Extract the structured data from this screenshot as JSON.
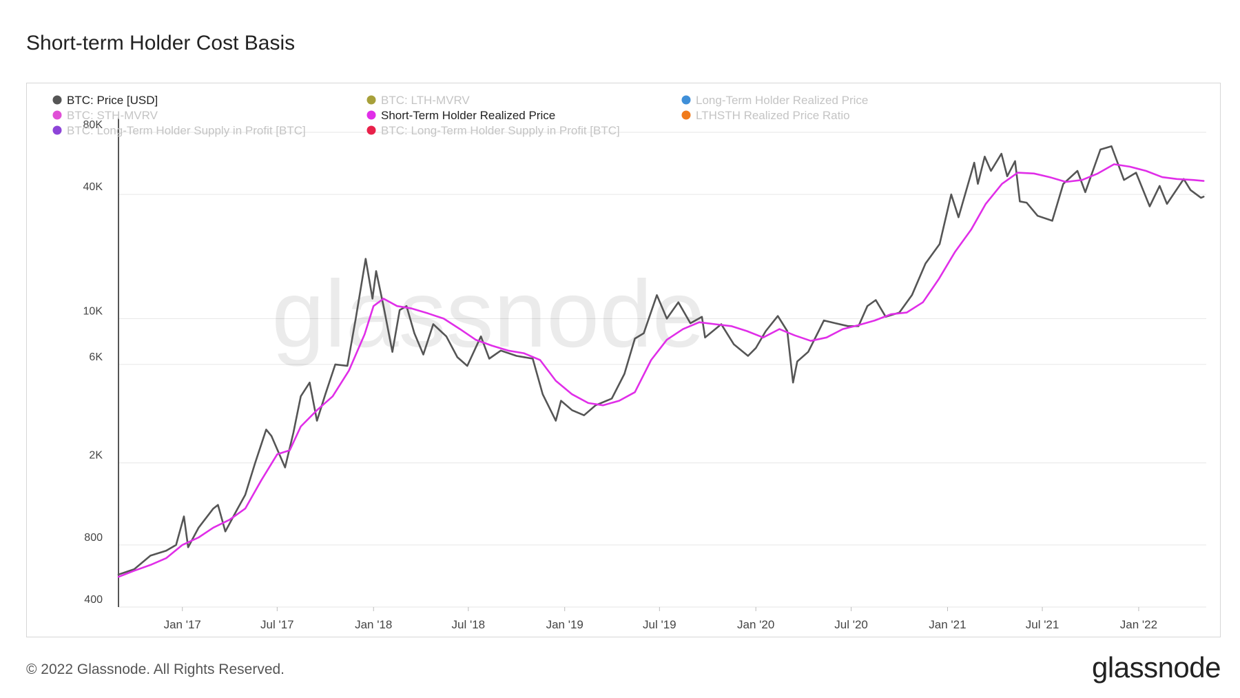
{
  "title": "Short-term Holder Cost Basis",
  "footer": "© 2022 Glassnode. All Rights Reserved.",
  "brand": "glassnode",
  "watermark": "glassnode",
  "legend": [
    {
      "label": "BTC: Price [USD]",
      "color": "#555555",
      "active": true
    },
    {
      "label": "BTC: LTH-MVRV",
      "color": "#a7a03a",
      "active": false
    },
    {
      "label": "Long-Term Holder Realized Price",
      "color": "#3f8fd8",
      "active": false
    },
    {
      "label": "BTC: STH-MVRV",
      "color": "#e04fd6",
      "active": false
    },
    {
      "label": "Short-Term Holder Realized Price",
      "color": "#e02ee8",
      "active": true
    },
    {
      "label": "LTHSTH Realized Price Ratio",
      "color": "#f07a1a",
      "active": false
    },
    {
      "label": "BTC: Long-Term Holder Supply in Profit [BTC]",
      "color": "#8d44d8",
      "active": false
    },
    {
      "label": "BTC: Long-Term Holder Supply in Profit [BTC]",
      "color": "#e8214a",
      "active": false
    }
  ],
  "chart_data": {
    "type": "line",
    "y_scale": "log",
    "ylim": [
      400,
      100000
    ],
    "y_ticks": [
      {
        "label": "400",
        "value": 400
      },
      {
        "label": "800",
        "value": 800
      },
      {
        "label": "2K",
        "value": 2000
      },
      {
        "label": "6K",
        "value": 6000
      },
      {
        "label": "10K",
        "value": 10000
      },
      {
        "label": "40K",
        "value": 40000
      },
      {
        "label": "80K",
        "value": 80000
      }
    ],
    "x_range": [
      "2016-09-01",
      "2022-05-10"
    ],
    "x_ticks": [
      {
        "label": "Jan '17",
        "date": "2017-01-01"
      },
      {
        "label": "Jul '17",
        "date": "2017-07-01"
      },
      {
        "label": "Jan '18",
        "date": "2018-01-01"
      },
      {
        "label": "Jul '18",
        "date": "2018-07-01"
      },
      {
        "label": "Jan '19",
        "date": "2019-01-01"
      },
      {
        "label": "Jul '19",
        "date": "2019-07-01"
      },
      {
        "label": "Jan '20",
        "date": "2020-01-01"
      },
      {
        "label": "Jul '20",
        "date": "2020-07-01"
      },
      {
        "label": "Jan '21",
        "date": "2021-01-01"
      },
      {
        "label": "Jul '21",
        "date": "2021-07-01"
      },
      {
        "label": "Jan '22",
        "date": "2022-01-01"
      }
    ],
    "grid": true,
    "legend_position": "top-left",
    "series": [
      {
        "name": "BTC: Price [USD]",
        "color": "#555555",
        "points": [
          [
            "2016-09-01",
            575
          ],
          [
            "2016-10-01",
            610
          ],
          [
            "2016-11-01",
            710
          ],
          [
            "2016-12-01",
            750
          ],
          [
            "2016-12-20",
            800
          ],
          [
            "2017-01-04",
            1100
          ],
          [
            "2017-01-12",
            780
          ],
          [
            "2017-02-01",
            970
          ],
          [
            "2017-03-01",
            1200
          ],
          [
            "2017-03-10",
            1250
          ],
          [
            "2017-03-24",
            930
          ],
          [
            "2017-04-15",
            1180
          ],
          [
            "2017-05-01",
            1400
          ],
          [
            "2017-05-20",
            2000
          ],
          [
            "2017-06-10",
            2900
          ],
          [
            "2017-06-20",
            2700
          ],
          [
            "2017-07-16",
            1900
          ],
          [
            "2017-08-01",
            2800
          ],
          [
            "2017-08-15",
            4200
          ],
          [
            "2017-09-01",
            4900
          ],
          [
            "2017-09-15",
            3200
          ],
          [
            "2017-10-01",
            4300
          ],
          [
            "2017-10-20",
            6000
          ],
          [
            "2017-11-12",
            5900
          ],
          [
            "2017-11-28",
            10000
          ],
          [
            "2017-12-17",
            19500
          ],
          [
            "2017-12-30",
            12500
          ],
          [
            "2018-01-06",
            17000
          ],
          [
            "2018-01-20",
            11500
          ],
          [
            "2018-02-06",
            6900
          ],
          [
            "2018-02-20",
            11000
          ],
          [
            "2018-03-05",
            11500
          ],
          [
            "2018-03-20",
            8500
          ],
          [
            "2018-04-06",
            6700
          ],
          [
            "2018-04-25",
            9400
          ],
          [
            "2018-05-20",
            8200
          ],
          [
            "2018-06-10",
            6500
          ],
          [
            "2018-06-29",
            5900
          ],
          [
            "2018-07-25",
            8200
          ],
          [
            "2018-08-10",
            6400
          ],
          [
            "2018-09-01",
            7000
          ],
          [
            "2018-10-01",
            6600
          ],
          [
            "2018-11-01",
            6400
          ],
          [
            "2018-11-20",
            4300
          ],
          [
            "2018-12-15",
            3200
          ],
          [
            "2018-12-25",
            4000
          ],
          [
            "2019-01-15",
            3600
          ],
          [
            "2019-02-07",
            3400
          ],
          [
            "2019-03-01",
            3800
          ],
          [
            "2019-04-01",
            4100
          ],
          [
            "2019-04-25",
            5400
          ],
          [
            "2019-05-15",
            8000
          ],
          [
            "2019-06-01",
            8500
          ],
          [
            "2019-06-26",
            13000
          ],
          [
            "2019-07-15",
            10000
          ],
          [
            "2019-08-06",
            12000
          ],
          [
            "2019-08-29",
            9500
          ],
          [
            "2019-09-20",
            10200
          ],
          [
            "2019-09-26",
            8100
          ],
          [
            "2019-10-27",
            9400
          ],
          [
            "2019-11-20",
            7500
          ],
          [
            "2019-12-17",
            6600
          ],
          [
            "2020-01-01",
            7200
          ],
          [
            "2020-01-20",
            8700
          ],
          [
            "2020-02-12",
            10300
          ],
          [
            "2020-03-01",
            8700
          ],
          [
            "2020-03-12",
            4900
          ],
          [
            "2020-03-20",
            6200
          ],
          [
            "2020-04-10",
            6900
          ],
          [
            "2020-04-30",
            8700
          ],
          [
            "2020-05-10",
            9800
          ],
          [
            "2020-06-01",
            9500
          ],
          [
            "2020-06-25",
            9200
          ],
          [
            "2020-07-15",
            9200
          ],
          [
            "2020-08-01",
            11500
          ],
          [
            "2020-08-17",
            12300
          ],
          [
            "2020-09-05",
            10200
          ],
          [
            "2020-10-01",
            10700
          ],
          [
            "2020-10-25",
            13000
          ],
          [
            "2020-11-20",
            18500
          ],
          [
            "2020-12-17",
            23000
          ],
          [
            "2021-01-08",
            40000
          ],
          [
            "2021-01-22",
            31000
          ],
          [
            "2021-02-21",
            57000
          ],
          [
            "2021-02-28",
            45000
          ],
          [
            "2021-03-13",
            61000
          ],
          [
            "2021-03-25",
            52000
          ],
          [
            "2021-04-14",
            63000
          ],
          [
            "2021-04-25",
            49000
          ],
          [
            "2021-05-10",
            58000
          ],
          [
            "2021-05-19",
            37000
          ],
          [
            "2021-06-01",
            36500
          ],
          [
            "2021-06-22",
            31500
          ],
          [
            "2021-07-20",
            29800
          ],
          [
            "2021-08-10",
            45000
          ],
          [
            "2021-09-06",
            52000
          ],
          [
            "2021-09-21",
            41000
          ],
          [
            "2021-10-20",
            66000
          ],
          [
            "2021-11-10",
            68500
          ],
          [
            "2021-12-04",
            47000
          ],
          [
            "2021-12-27",
            51000
          ],
          [
            "2022-01-22",
            35000
          ],
          [
            "2022-02-10",
            44000
          ],
          [
            "2022-02-24",
            36000
          ],
          [
            "2022-03-28",
            47500
          ],
          [
            "2022-04-10",
            42000
          ],
          [
            "2022-04-30",
            38500
          ],
          [
            "2022-05-05",
            39000
          ]
        ]
      },
      {
        "name": "Short-Term Holder Realized Price",
        "color": "#e02ee8",
        "points": [
          [
            "2016-09-01",
            560
          ],
          [
            "2016-10-01",
            600
          ],
          [
            "2016-11-01",
            640
          ],
          [
            "2016-12-01",
            690
          ],
          [
            "2017-01-01",
            800
          ],
          [
            "2017-02-01",
            870
          ],
          [
            "2017-03-01",
            970
          ],
          [
            "2017-04-01",
            1060
          ],
          [
            "2017-05-01",
            1200
          ],
          [
            "2017-06-01",
            1650
          ],
          [
            "2017-07-01",
            2200
          ],
          [
            "2017-07-25",
            2300
          ],
          [
            "2017-08-15",
            3000
          ],
          [
            "2017-09-15",
            3600
          ],
          [
            "2017-10-15",
            4200
          ],
          [
            "2017-11-15",
            5600
          ],
          [
            "2017-12-15",
            8400
          ],
          [
            "2018-01-01",
            11500
          ],
          [
            "2018-01-20",
            12500
          ],
          [
            "2018-02-15",
            11500
          ],
          [
            "2018-03-15",
            11200
          ],
          [
            "2018-04-15",
            10600
          ],
          [
            "2018-05-15",
            10000
          ],
          [
            "2018-06-15",
            8900
          ],
          [
            "2018-07-15",
            7900
          ],
          [
            "2018-08-15",
            7400
          ],
          [
            "2018-09-15",
            7000
          ],
          [
            "2018-10-15",
            6800
          ],
          [
            "2018-11-15",
            6300
          ],
          [
            "2018-12-15",
            5000
          ],
          [
            "2019-01-15",
            4300
          ],
          [
            "2019-02-15",
            3900
          ],
          [
            "2019-03-15",
            3800
          ],
          [
            "2019-04-15",
            4000
          ],
          [
            "2019-05-15",
            4400
          ],
          [
            "2019-06-15",
            6300
          ],
          [
            "2019-07-15",
            7900
          ],
          [
            "2019-08-15",
            8900
          ],
          [
            "2019-09-15",
            9600
          ],
          [
            "2019-10-15",
            9400
          ],
          [
            "2019-11-15",
            9200
          ],
          [
            "2019-12-15",
            8700
          ],
          [
            "2020-01-15",
            8100
          ],
          [
            "2020-02-15",
            8900
          ],
          [
            "2020-03-15",
            8300
          ],
          [
            "2020-04-15",
            7800
          ],
          [
            "2020-05-15",
            8100
          ],
          [
            "2020-06-15",
            8900
          ],
          [
            "2020-07-15",
            9300
          ],
          [
            "2020-08-15",
            9800
          ],
          [
            "2020-09-15",
            10500
          ],
          [
            "2020-10-15",
            10700
          ],
          [
            "2020-11-15",
            12000
          ],
          [
            "2020-12-15",
            15500
          ],
          [
            "2021-01-15",
            21000
          ],
          [
            "2021-02-15",
            27000
          ],
          [
            "2021-03-15",
            36000
          ],
          [
            "2021-04-15",
            45000
          ],
          [
            "2021-05-15",
            51000
          ],
          [
            "2021-06-15",
            50500
          ],
          [
            "2021-07-15",
            48500
          ],
          [
            "2021-08-15",
            46000
          ],
          [
            "2021-09-15",
            47000
          ],
          [
            "2021-10-15",
            50500
          ],
          [
            "2021-11-15",
            56000
          ],
          [
            "2021-12-15",
            54500
          ],
          [
            "2022-01-15",
            52000
          ],
          [
            "2022-02-15",
            48500
          ],
          [
            "2022-03-15",
            47500
          ],
          [
            "2022-04-15",
            47000
          ],
          [
            "2022-05-05",
            46500
          ]
        ]
      }
    ]
  }
}
